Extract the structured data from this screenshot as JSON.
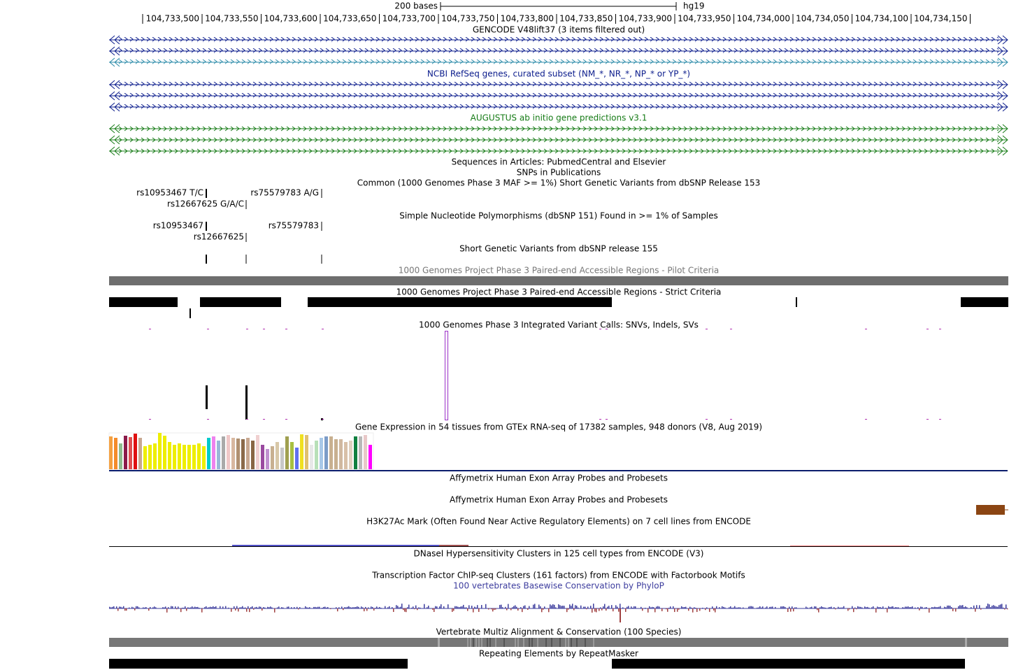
{
  "ruler": {
    "scale_label": "200 bases",
    "assembly": "hg19",
    "positions": [
      "104,733,500",
      "104,733,550",
      "104,733,600",
      "104,733,650",
      "104,733,700",
      "104,733,750",
      "104,733,800",
      "104,733,850",
      "104,733,900",
      "104,733,950",
      "104,734,000",
      "104,734,050",
      "104,734,100",
      "104,734,150"
    ]
  },
  "tracks": [
    {
      "title": "GENCODE V48lift37 (3 items filtered out)"
    },
    {
      "title": "NCBI RefSeq genes, curated subset (NM_*, NR_*, NP_* or YP_*)"
    },
    {
      "title": "AUGUSTUS ab initio gene predictions v3.1"
    },
    {
      "title": "Sequences in Articles: PubmedCentral and Elsevier"
    },
    {
      "title": "SNPs in Publications"
    },
    {
      "title": "Common (1000 Genomes Phase 3 MAF >= 1%) Short Genetic Variants from dbSNP Release 153"
    },
    {
      "title": "Simple Nucleotide Polymorphisms (dbSNP 151) Found in >= 1% of Samples"
    },
    {
      "title": "Short Genetic Variants from dbSNP release 155"
    },
    {
      "title": "1000 Genomes Project Phase 3 Paired-end Accessible Regions - Pilot Criteria"
    },
    {
      "title": "1000 Genomes Project Phase 3 Paired-end Accessible Regions - Strict Criteria"
    },
    {
      "title": "1000 Genomes Phase 3 Integrated Variant Calls: SNVs, Indels, SVs"
    },
    {
      "title": "Gene Expression in 54 tissues from GTEx RNA-seq of 17382 samples, 948 donors (V8, Aug 2019)"
    },
    {
      "title": "Affymetrix Human Exon Array Probes and Probesets"
    },
    {
      "title": "Affymetrix Human Exon Array Probes and Probesets"
    },
    {
      "title": "H3K27Ac Mark (Often Found Near Active Regulatory Elements) on 7 cell lines from ENCODE"
    },
    {
      "title": "DNaseI Hypersensitivity Clusters in 125 cell types from ENCODE (V3)"
    },
    {
      "title": "Transcription Factor ChIP-seq Clusters (161 factors) from ENCODE with Factorbook Motifs"
    },
    {
      "title": "100 vertebrates Basewise Conservation by PhyloP"
    },
    {
      "title": "Vertebrate Multiz Alignment & Conservation (100 Species)"
    },
    {
      "title": "Repeating Elements by RepeatMasker"
    }
  ],
  "dbsnp153_labels": [
    "rs10953467 T/C",
    "rs75579783 A/G",
    "rs12667625 G/A/C"
  ],
  "dbsnp151_labels": [
    "rs10953467",
    "rs75579783",
    "rs12667625"
  ]
}
